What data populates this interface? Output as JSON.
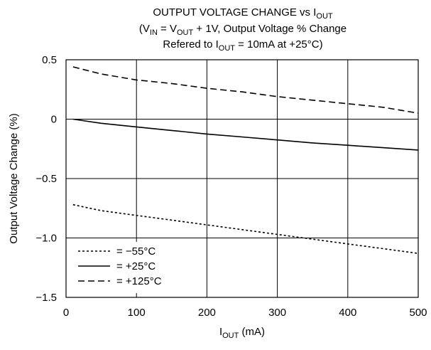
{
  "chart_data": {
    "type": "line",
    "title": {
      "line1": {
        "text": "OUTPUT VOLTAGE CHANGE vs I",
        "sub": "OUT"
      },
      "line2": {
        "p1": "(V",
        "s1": "IN",
        "p2": " = V",
        "s2": "OUT",
        "p3": " + 1V, Output Voltage % Change"
      },
      "line3": {
        "p1": "Refered to I",
        "s1": "OUT",
        "p2": " = 10mA at +25°C)"
      }
    },
    "xlabel": {
      "main": "I",
      "sub": "OUT",
      "rest": " (mA)"
    },
    "ylabel": "Output Voltage Change (%)",
    "xlim": [
      0,
      500
    ],
    "ylim": [
      -1.5,
      0.5
    ],
    "x_ticks": [
      0,
      100,
      200,
      300,
      400,
      500
    ],
    "y_ticks": [
      0.5,
      0,
      -0.5,
      -1.0,
      -1.5
    ],
    "y_tick_labels": [
      "0.5",
      "0",
      "−0.5",
      "−1.0",
      "−1.5"
    ],
    "grid": true,
    "legend_position": "bottom-left",
    "series": [
      {
        "name": "= −55°C",
        "style": "dotted",
        "x": [
          10,
          50,
          100,
          150,
          200,
          250,
          300,
          350,
          400,
          450,
          500
        ],
        "y": [
          -0.72,
          -0.77,
          -0.81,
          -0.85,
          -0.89,
          -0.93,
          -0.97,
          -1.01,
          -1.05,
          -1.09,
          -1.13
        ]
      },
      {
        "name": "= +25°C",
        "style": "solid",
        "x": [
          10,
          50,
          100,
          150,
          200,
          250,
          300,
          350,
          400,
          450,
          500
        ],
        "y": [
          0.0,
          -0.035,
          -0.065,
          -0.095,
          -0.125,
          -0.15,
          -0.175,
          -0.2,
          -0.22,
          -0.24,
          -0.26
        ]
      },
      {
        "name": "= +125°C",
        "style": "dashed",
        "x": [
          10,
          50,
          100,
          150,
          200,
          250,
          300,
          350,
          400,
          450,
          500
        ],
        "y": [
          0.44,
          0.38,
          0.33,
          0.3,
          0.26,
          0.23,
          0.19,
          0.16,
          0.13,
          0.1,
          0.05
        ]
      }
    ]
  }
}
